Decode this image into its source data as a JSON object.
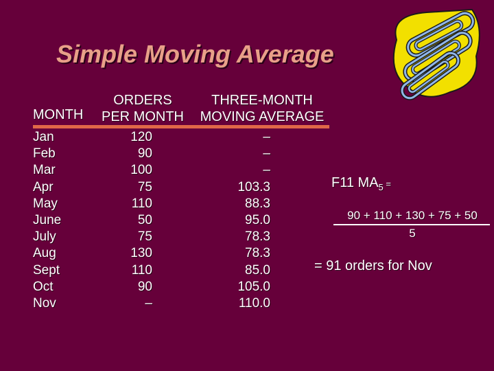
{
  "title": "Simple Moving Average",
  "headers": {
    "month": "MONTH",
    "orders_line1": "ORDERS",
    "orders_line2": "PER MONTH",
    "ma_line1": "THREE-MONTH",
    "ma_line2": "MOVING AVERAGE"
  },
  "rows": [
    {
      "month": "Jan",
      "orders": "120",
      "ma": "–"
    },
    {
      "month": "Feb",
      "orders": "90",
      "ma": "–"
    },
    {
      "month": "Mar",
      "orders": "100",
      "ma": "–"
    },
    {
      "month": "Apr",
      "orders": "75",
      "ma": "103.3"
    },
    {
      "month": "May",
      "orders": "110",
      "ma": "88.3"
    },
    {
      "month": "June",
      "orders": "50",
      "ma": "95.0"
    },
    {
      "month": "July",
      "orders": "75",
      "ma": "78.3"
    },
    {
      "month": "Aug",
      "orders": "130",
      "ma": "78.3"
    },
    {
      "month": "Sept",
      "orders": "110",
      "ma": "85.0"
    },
    {
      "month": "Oct",
      "orders": "90",
      "ma": "105.0"
    },
    {
      "month": "Nov",
      "orders": "–",
      "ma": "110.0"
    }
  ],
  "formula": {
    "prefix": "F11 MA",
    "subscript": "5",
    "equals": " =",
    "numerator": "90 + 110 + 130 + 75 + 50",
    "denominator": "5",
    "result": "= 91 orders for Nov"
  },
  "clip_art_icon": "paperclips-icon",
  "colors": {
    "background": "#66003a",
    "title": "#e8a088",
    "accent_line": "#e06848",
    "text": "#ffffff"
  }
}
